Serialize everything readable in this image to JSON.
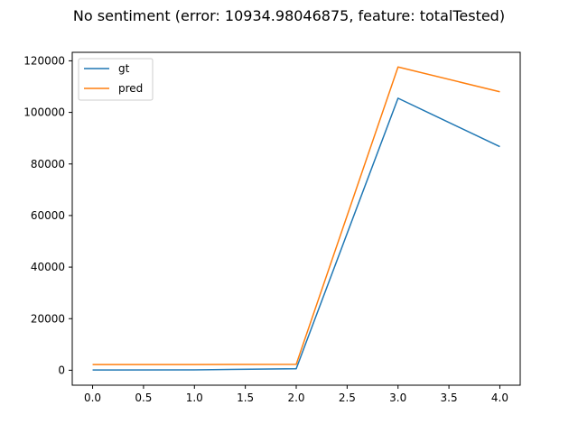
{
  "chart_data": {
    "type": "line",
    "title": "No sentiment (error: 10934.98046875, feature: totalTested)",
    "xlabel": "",
    "ylabel": "",
    "x": [
      0,
      1,
      2,
      3,
      4
    ],
    "xlim": [
      -0.2,
      4.2
    ],
    "ylim": [
      -5800,
      123300
    ],
    "xticks": [
      "0.0",
      "0.5",
      "1.0",
      "1.5",
      "2.0",
      "2.5",
      "3.0",
      "3.5",
      "4.0"
    ],
    "yticks": [
      "0",
      "20000",
      "40000",
      "60000",
      "80000",
      "100000",
      "120000"
    ],
    "grid": false,
    "legend": "upper-left",
    "series": [
      {
        "name": "gt",
        "color": "#1f77b4",
        "values": [
          100,
          150,
          600,
          105500,
          86700
        ]
      },
      {
        "name": "pred",
        "color": "#ff7f0e",
        "values": [
          2200,
          2200,
          2300,
          117600,
          108000
        ]
      }
    ]
  }
}
